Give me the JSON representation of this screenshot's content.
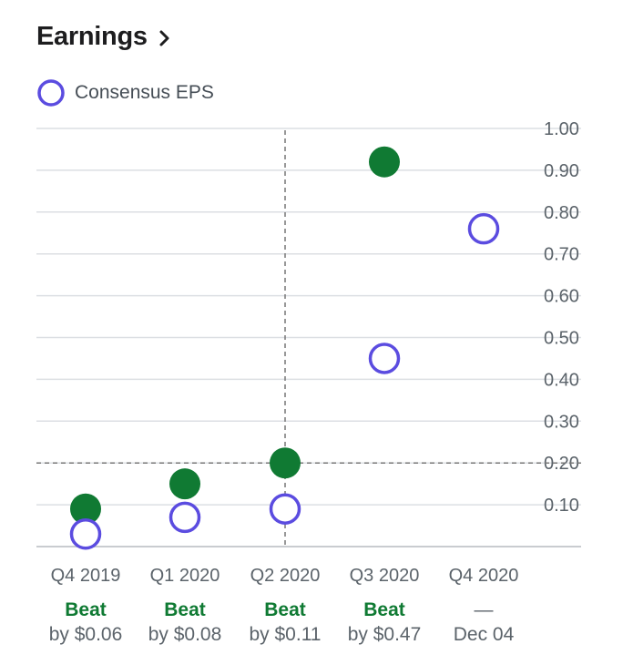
{
  "header": {
    "title": "Earnings",
    "chevron_icon": "chevron-right-icon"
  },
  "legend": {
    "label": "Consensus EPS",
    "icon": "hollow-circle-icon"
  },
  "colors": {
    "consensus": "#5b4ce0",
    "beat": "#107a33",
    "grid": "#dcdfe3",
    "axis": "#c9ccd0"
  },
  "chart_data": {
    "type": "scatter",
    "title": "Earnings",
    "ylim": [
      0,
      1.0
    ],
    "y_ticks": [
      "1.00",
      "0.90",
      "0.80",
      "0.70",
      "0.60",
      "0.50",
      "0.40",
      "0.30",
      "0.20",
      "0.10"
    ],
    "y_tick_values": [
      1.0,
      0.9,
      0.8,
      0.7,
      0.6,
      0.5,
      0.4,
      0.3,
      0.2,
      0.1
    ],
    "categories": [
      "Q4 2019",
      "Q1 2020",
      "Q2 2020",
      "Q3 2020",
      "Q4 2020"
    ],
    "series": [
      {
        "name": "Consensus EPS",
        "values": [
          0.03,
          0.07,
          0.09,
          0.45,
          0.76
        ]
      },
      {
        "values": [
          0.09,
          0.15,
          0.2,
          0.92,
          null
        ]
      }
    ],
    "status": [
      "Beat",
      "Beat",
      "Beat",
      "Beat",
      "—"
    ],
    "detail": [
      "by $0.06",
      "by $0.08",
      "by $0.11",
      "by $0.47",
      "Dec 04"
    ],
    "crosshair": {
      "category": "Q2 2020",
      "y": 0.2,
      "label": "0.20"
    },
    "grid": true,
    "legend_position": "top-left"
  }
}
